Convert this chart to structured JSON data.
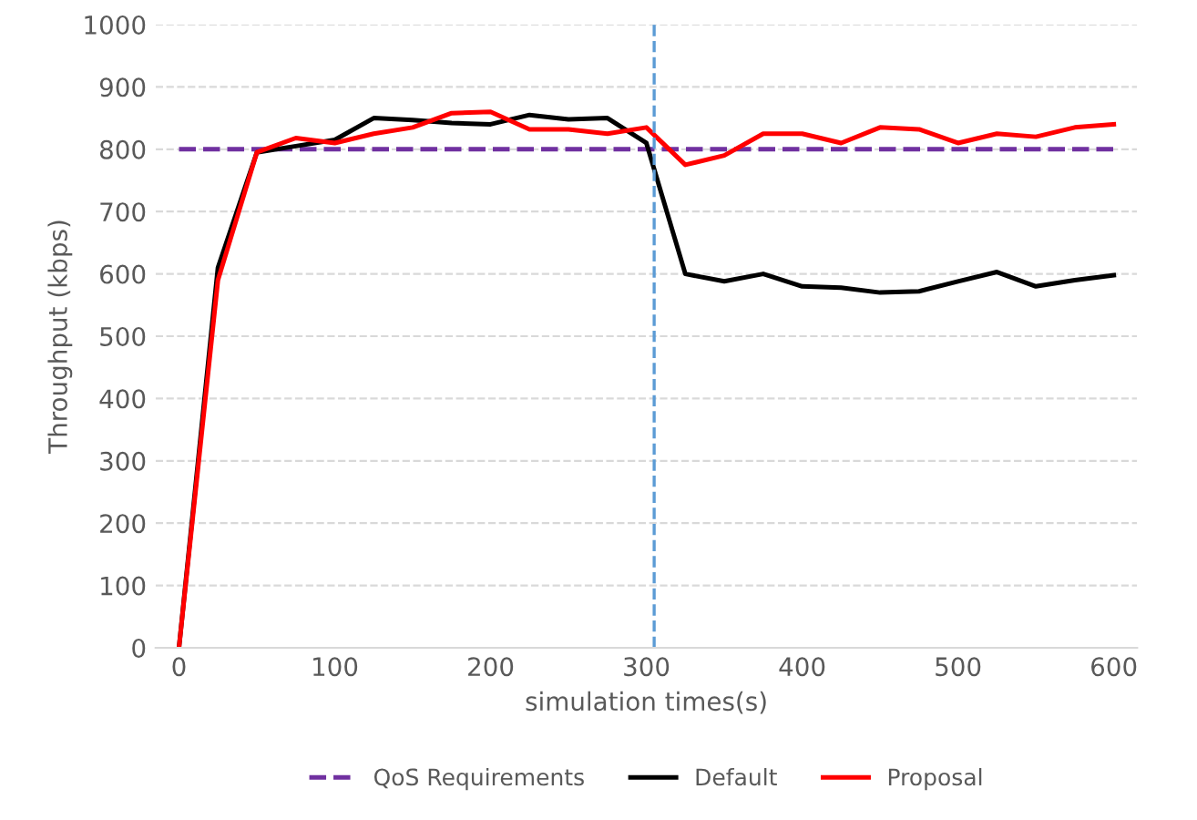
{
  "chart_data": {
    "type": "line",
    "xlabel": "simulation times(s)",
    "ylabel": "Throughput (kbps)",
    "x": [
      0,
      25,
      50,
      75,
      100,
      125,
      150,
      175,
      200,
      225,
      250,
      275,
      300,
      325,
      350,
      375,
      400,
      425,
      450,
      475,
      500,
      525,
      550,
      575,
      600
    ],
    "series": [
      {
        "name": "QoS Requirements",
        "color": "#7030a0",
        "line_style": "dashed",
        "values": [
          800,
          800,
          800,
          800,
          800,
          800,
          800,
          800,
          800,
          800,
          800,
          800,
          800,
          800,
          800,
          800,
          800,
          800,
          800,
          800,
          800,
          800,
          800,
          800,
          800
        ]
      },
      {
        "name": "Default",
        "color": "#000000",
        "line_style": "solid",
        "values": [
          0,
          610,
          795,
          805,
          815,
          850,
          847,
          842,
          840,
          855,
          848,
          850,
          810,
          600,
          588,
          600,
          580,
          578,
          570,
          572,
          588,
          603,
          580,
          590,
          598
        ]
      },
      {
        "name": "Proposal",
        "color": "#ff0000",
        "line_style": "solid",
        "values": [
          0,
          590,
          795,
          818,
          810,
          825,
          835,
          858,
          860,
          832,
          832,
          825,
          835,
          775,
          790,
          825,
          825,
          810,
          835,
          832,
          810,
          825,
          820,
          835,
          840
        ]
      }
    ],
    "ref_lines": [
      {
        "axis": "x",
        "value": 305,
        "color": "#5b9bd5",
        "line_style": "dashed"
      }
    ],
    "xlim": [
      -15,
      615
    ],
    "xticks": [
      0,
      100,
      200,
      300,
      400,
      500,
      600
    ],
    "ylim": [
      0,
      1000
    ],
    "yticks": [
      0,
      100,
      200,
      300,
      400,
      500,
      600,
      700,
      800,
      900,
      1000
    ],
    "grid": "y",
    "legend": "bottom",
    "marker": "none"
  }
}
